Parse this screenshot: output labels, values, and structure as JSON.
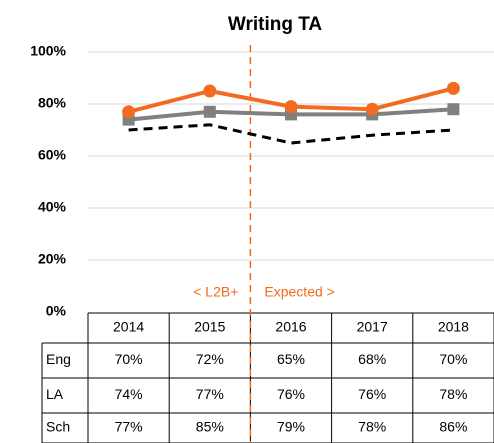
{
  "chart_data": {
    "type": "line",
    "title": "Writing TA",
    "categories": [
      "2014",
      "2015",
      "2016",
      "2017",
      "2018"
    ],
    "series": [
      {
        "name": "Eng",
        "color": "#000000",
        "dash": true,
        "marker": "none",
        "values": [
          70,
          72,
          65,
          68,
          70
        ],
        "value_labels": [
          "70%",
          "72%",
          "65%",
          "68%",
          "70%"
        ]
      },
      {
        "name": "LA",
        "color": "#808080",
        "dash": false,
        "marker": "square",
        "values": [
          74,
          77,
          76,
          76,
          78
        ],
        "value_labels": [
          "74%",
          "77%",
          "76%",
          "76%",
          "78%"
        ]
      },
      {
        "name": "Sch",
        "color": "#f26b21",
        "dash": false,
        "marker": "circle",
        "values": [
          77,
          85,
          79,
          78,
          86
        ],
        "value_labels": [
          "77%",
          "85%",
          "79%",
          "78%",
          "86%"
        ]
      }
    ],
    "ylim": [
      0,
      100
    ],
    "yticks": [
      {
        "value": 0,
        "label": "0%"
      },
      {
        "value": 20,
        "label": "20%"
      },
      {
        "value": 40,
        "label": "40%"
      },
      {
        "value": 60,
        "label": "60%"
      },
      {
        "value": 80,
        "label": "80%"
      },
      {
        "value": 100,
        "label": "100%"
      }
    ],
    "grid": true,
    "annotations": [
      "< L2B+",
      "Expected >"
    ],
    "annotation_color": "#f26b21"
  }
}
